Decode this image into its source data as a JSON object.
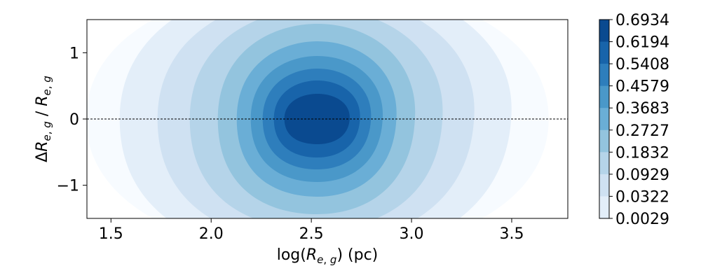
{
  "chart_data": {
    "type": "contour",
    "title": "",
    "xlabel": "log(R_e,g) (pc)",
    "ylabel": "ΔR_e,g / R_e,g",
    "xlim": [
      1.38,
      3.78
    ],
    "ylim": [
      -1.5,
      1.5
    ],
    "x_ticks": [
      1.5,
      2.0,
      2.5,
      3.0,
      3.5
    ],
    "x_tick_labels": [
      "1.5",
      "2.0",
      "2.5",
      "3.0",
      "3.5"
    ],
    "y_ticks": [
      1,
      0,
      -1
    ],
    "y_tick_labels": [
      "1",
      "0",
      "−1"
    ],
    "reference_line": {
      "y": 0,
      "style": "dashed"
    },
    "density_peak": {
      "x": 2.53,
      "y": 0.0
    },
    "contour_levels": [
      0.0029,
      0.0322,
      0.0929,
      0.1832,
      0.2727,
      0.3683,
      0.4579,
      0.5408,
      0.6194,
      0.6934
    ],
    "colorbar_labels": [
      "0.6934",
      "0.6194",
      "0.5408",
      "0.4579",
      "0.3683",
      "0.2727",
      "0.1832",
      "0.0929",
      "0.0322",
      "0.0029"
    ],
    "colors": [
      "#f7fbff",
      "#e3eef9",
      "#cfe1f2",
      "#b5d4e9",
      "#93c4de",
      "#6aaed6",
      "#4a98c9",
      "#2e7ebc",
      "#1864aa",
      "#0a4a90"
    ],
    "grid": false,
    "colorbar": "right"
  }
}
